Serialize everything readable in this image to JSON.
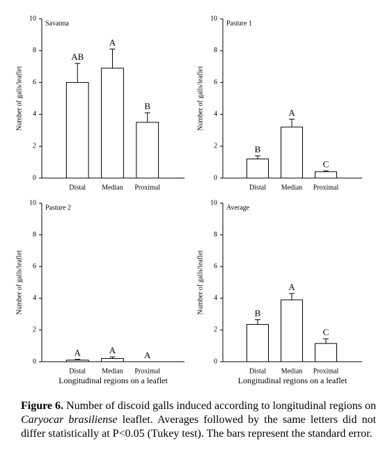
{
  "chart_data": [
    {
      "type": "bar",
      "title": "Savanna",
      "y_label": "Number of galls/leaflet",
      "categories": [
        "Distal",
        "Median",
        "Proximal"
      ],
      "values": [
        6.0,
        6.9,
        3.5
      ],
      "errors": [
        1.2,
        1.2,
        0.6
      ],
      "letters": [
        "AB",
        "A",
        "B"
      ],
      "color": "#ffffff",
      "ylim": [
        0,
        10
      ],
      "yticks": [
        0,
        2,
        4,
        6,
        8,
        10
      ]
    },
    {
      "type": "bar",
      "title": "Pasture 1",
      "y_label": "Number of galls/leaflet",
      "categories": [
        "Distal",
        "Median",
        "Proximal"
      ],
      "values": [
        1.2,
        3.2,
        0.4
      ],
      "errors": [
        0.2,
        0.5,
        0.05
      ],
      "letters": [
        "B",
        "A",
        "C"
      ],
      "color": "#ffffff",
      "ylim": [
        0,
        10
      ],
      "yticks": [
        0,
        2,
        4,
        6,
        8,
        10
      ]
    },
    {
      "type": "bar",
      "title": "Pasture 2",
      "y_label": "Number of galls/leaflet",
      "x_label": "Longitudinal regions on a leaflet",
      "categories": [
        "Distal",
        "Median",
        "Proximal"
      ],
      "values": [
        0.1,
        0.2,
        0.0
      ],
      "errors": [
        0.05,
        0.1,
        0.0
      ],
      "letters": [
        "A",
        "A",
        "A"
      ],
      "color": "#ffffff",
      "ylim": [
        0,
        10
      ],
      "yticks": [
        0,
        2,
        4,
        6,
        8,
        10
      ]
    },
    {
      "type": "bar",
      "title": "Average",
      "y_label": "Number of galls/leaflet",
      "x_label": "Longitudinal regions on a leaflet",
      "categories": [
        "Distal",
        "Median",
        "Proximal"
      ],
      "values": [
        2.35,
        3.9,
        1.15
      ],
      "errors": [
        0.3,
        0.4,
        0.3
      ],
      "letters": [
        "B",
        "A",
        "C"
      ],
      "color": "#ffffff",
      "ylim": [
        0,
        10
      ],
      "yticks": [
        0,
        2,
        4,
        6,
        8,
        10
      ]
    }
  ],
  "caption": {
    "label": "Figure 6.",
    "text_before": "Number of discoid galls induced according to longitudinal regions on",
    "species": "Caryocar brasiliense",
    "text_after": "leaflet. Averages followed by the same letters did not differ statistically at P<0.05 (Tukey test). The bars represent the standard error."
  }
}
